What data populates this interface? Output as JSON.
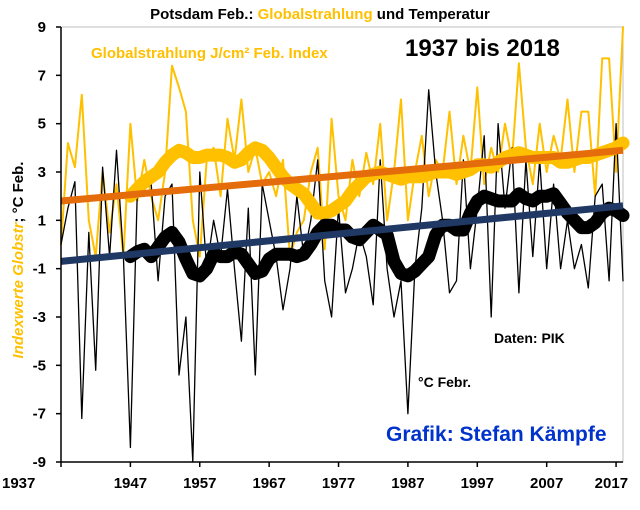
{
  "chart_data": {
    "type": "line",
    "title_part1": "Potsdam Feb.: ",
    "title_part2": "Globalstrahlung",
    "title_part3": " und Temperatur",
    "period_label": "1937 bis 2018",
    "series_label_radiation": "Globalstrahlung J/cm² Feb. Index",
    "series_label_temperature": "°C Febr.",
    "source_label": "Daten: PIK",
    "author_label": "Grafik: Stefan Kämpfe",
    "ylabel_part1": "Indexwerte Globstr",
    "ylabel_part2": "; °C Feb.",
    "ylim": [
      -9,
      9
    ],
    "xlim": [
      1937,
      2018
    ],
    "yticks": [
      -9,
      -7,
      -5,
      -3,
      -1,
      1,
      3,
      5,
      7,
      9
    ],
    "xticks": [
      1937,
      1947,
      1957,
      1967,
      1977,
      1987,
      1997,
      2007,
      2017
    ],
    "grid": false,
    "colors": {
      "radiation": "#FFC000",
      "temperature": "#000000",
      "radiation_trend": "#E46C0A",
      "temperature_trend": "#1F3864",
      "title_highlight": "#FFC000",
      "author": "#0033CC"
    },
    "x": [
      1937,
      1938,
      1939,
      1940,
      1941,
      1942,
      1943,
      1944,
      1945,
      1946,
      1947,
      1948,
      1949,
      1950,
      1951,
      1952,
      1953,
      1954,
      1955,
      1956,
      1957,
      1958,
      1959,
      1960,
      1961,
      1962,
      1963,
      1964,
      1965,
      1966,
      1967,
      1968,
      1969,
      1970,
      1971,
      1972,
      1973,
      1974,
      1975,
      1976,
      1977,
      1978,
      1979,
      1980,
      1981,
      1982,
      1983,
      1984,
      1985,
      1986,
      1987,
      1988,
      1989,
      1990,
      1991,
      1992,
      1993,
      1994,
      1995,
      1996,
      1997,
      1998,
      1999,
      2000,
      2001,
      2002,
      2003,
      2004,
      2005,
      2006,
      2007,
      2008,
      2009,
      2010,
      2011,
      2012,
      2013,
      2014,
      2015,
      2016,
      2017,
      2018
    ],
    "series": [
      {
        "name": "Globalstrahlung J/cm² Feb. Index",
        "values": [
          0.0,
          4.2,
          3.2,
          6.2,
          1.0,
          -0.5,
          3.0,
          0.5,
          2.5,
          -0.5,
          5.0,
          1.8,
          3.5,
          2.0,
          1.0,
          3.0,
          7.4,
          6.5,
          5.5,
          1.0,
          -0.5,
          3.5,
          4.0,
          2.0,
          5.2,
          3.5,
          6.0,
          3.0,
          4.0,
          2.5,
          3.0,
          2.0,
          3.5,
          -0.5,
          0.5,
          1.0,
          3.0,
          4.0,
          -0.2,
          5.2,
          2.0,
          1.0,
          3.5,
          2.0,
          3.8,
          2.5,
          5.0,
          1.0,
          3.0,
          6.0,
          1.0,
          3.0,
          4.5,
          2.0,
          3.5,
          3.0,
          5.5,
          2.5,
          4.5,
          3.0,
          6.5,
          2.5,
          4.0,
          3.0,
          5.0,
          3.5,
          7.5,
          4.0,
          2.5,
          5.0,
          3.0,
          4.5,
          3.5,
          6.0,
          3.0,
          5.5,
          5.5,
          2.0,
          7.7,
          7.7,
          3.0,
          9.0
        ]
      },
      {
        "name": "°C Febr.",
        "values": [
          0.0,
          1.5,
          2.6,
          -7.2,
          0.5,
          -5.2,
          3.2,
          -0.5,
          3.9,
          -0.5,
          -8.4,
          2.2,
          2.3,
          2.5,
          -1.5,
          2.0,
          2.5,
          -5.4,
          -3.0,
          -9.0,
          3.0,
          -1.0,
          1.0,
          -0.5,
          2.3,
          -1.0,
          -4.0,
          1.5,
          -5.4,
          2.5,
          1.0,
          -0.5,
          -2.7,
          -1.0,
          2.0,
          -0.5,
          1.0,
          3.5,
          -1.5,
          -3.0,
          1.5,
          -2.0,
          -1.0,
          0.5,
          -0.5,
          -2.5,
          3.5,
          -1.0,
          -3.0,
          -1.5,
          -7.0,
          -1.0,
          1.5,
          6.4,
          3.0,
          1.0,
          -2.0,
          -1.5,
          3.5,
          -1.0,
          1.5,
          4.5,
          -3.0,
          5.0,
          1.5,
          4.0,
          -2.0,
          3.5,
          -0.5,
          3.5,
          -1.0,
          2.5,
          -1.0,
          1.0,
          -1.0,
          0.0,
          -1.8,
          2.0,
          2.5,
          -1.5,
          5.0,
          -1.5
        ]
      },
      {
        "name": "Globalstrahlung smoothed",
        "values": [
          null,
          null,
          null,
          null,
          null,
          null,
          null,
          null,
          null,
          null,
          2.0,
          2.3,
          2.6,
          2.8,
          3.0,
          3.4,
          3.7,
          3.9,
          3.8,
          3.6,
          3.6,
          3.7,
          3.7,
          3.7,
          3.6,
          3.4,
          3.5,
          3.8,
          4.0,
          3.9,
          3.6,
          3.2,
          2.8,
          2.5,
          2.3,
          2.1,
          1.7,
          1.3,
          1.3,
          1.4,
          1.6,
          1.8,
          2.2,
          2.5,
          2.8,
          2.9,
          3.0,
          2.9,
          2.8,
          2.7,
          2.8,
          2.8,
          2.8,
          2.9,
          3.0,
          3.0,
          3.0,
          2.9,
          3.0,
          3.1,
          3.3,
          3.3,
          3.2,
          3.4,
          3.6,
          3.7,
          3.8,
          3.7,
          3.6,
          3.6,
          3.6,
          3.6,
          3.4,
          3.4,
          3.5,
          3.6,
          3.6,
          3.7,
          3.8,
          3.9,
          4.0,
          4.2
        ]
      },
      {
        "name": "Temperatur smoothed",
        "values": [
          null,
          null,
          null,
          null,
          null,
          null,
          null,
          null,
          null,
          null,
          -0.5,
          -0.3,
          -0.2,
          -0.5,
          -0.1,
          0.3,
          0.5,
          0.1,
          -0.6,
          -1.2,
          -1.3,
          -1.0,
          -0.4,
          -0.5,
          -0.5,
          -0.3,
          -0.4,
          -0.8,
          -1.2,
          -1.1,
          -0.6,
          -0.4,
          -0.4,
          -0.4,
          -0.5,
          -0.4,
          0.0,
          0.5,
          0.8,
          0.8,
          0.6,
          0.6,
          0.3,
          0.2,
          0.5,
          0.8,
          0.6,
          0.4,
          -0.7,
          -1.2,
          -1.3,
          -1.1,
          -0.8,
          -0.5,
          0.4,
          0.8,
          0.8,
          0.6,
          0.6,
          1.3,
          1.8,
          2.0,
          1.9,
          1.8,
          1.8,
          1.8,
          2.1,
          1.9,
          1.8,
          2.0,
          2.0,
          2.1,
          1.7,
          1.3,
          1.0,
          0.7,
          0.7,
          0.9,
          1.3,
          1.5,
          1.4,
          1.2
        ]
      },
      {
        "name": "Globalstrahlung linear trend",
        "values": [
          1.8,
          3.9
        ],
        "x": [
          1937,
          2018
        ]
      },
      {
        "name": "Temperatur linear trend",
        "values": [
          -0.7,
          1.6
        ],
        "x": [
          1937,
          2018
        ]
      }
    ]
  }
}
